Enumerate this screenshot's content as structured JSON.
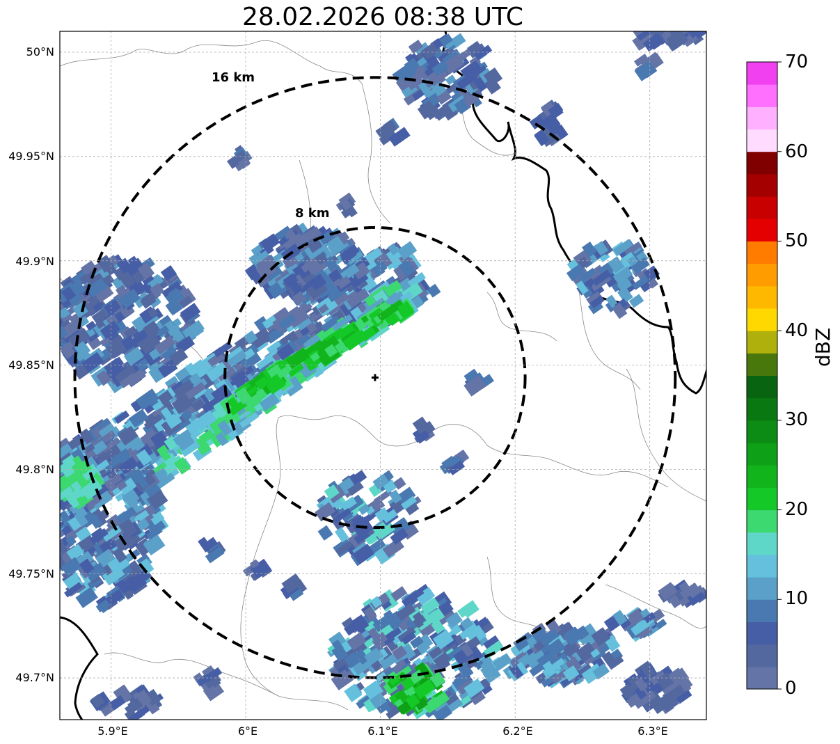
{
  "title": "28.02.2026 08:38 UTC",
  "map": {
    "lon_range": [
      5.862,
      6.342
    ],
    "lat_range": [
      49.68,
      50.01
    ],
    "radar_site": {
      "lon": 6.096,
      "lat": 49.844
    },
    "x_ticks": [
      "5.9°E",
      "6°E",
      "6.1°E",
      "6.2°E",
      "6.3°E"
    ],
    "y_ticks": [
      "50°N",
      "49.95°N",
      "49.9°N",
      "49.85°N",
      "49.8°N",
      "49.75°N",
      "49.7°N"
    ],
    "range_rings": [
      {
        "label": "8 km",
        "radius_km": 8
      },
      {
        "label": "16 km",
        "radius_km": 16
      }
    ]
  },
  "colorbar": {
    "label": "dBZ",
    "min": 0,
    "max": 70,
    "tick_labels": [
      "0",
      "10",
      "20",
      "30",
      "40",
      "50",
      "60",
      "70"
    ],
    "colors": [
      "#6474a6",
      "#5468a0",
      "#465ea6",
      "#4a78b0",
      "#5aa0c8",
      "#64c0dc",
      "#5ed6c8",
      "#3cd870",
      "#14c828",
      "#12b41c",
      "#0ea016",
      "#0c8c14",
      "#0a7810",
      "#086410",
      "#48780c",
      "#b0b00c",
      "#ffd800",
      "#ffb800",
      "#ff9c00",
      "#ff7c00",
      "#e40000",
      "#c80000",
      "#a40000",
      "#800000",
      "#ffdcff",
      "#ffb0ff",
      "#ff70ff",
      "#f040f0"
    ]
  }
}
